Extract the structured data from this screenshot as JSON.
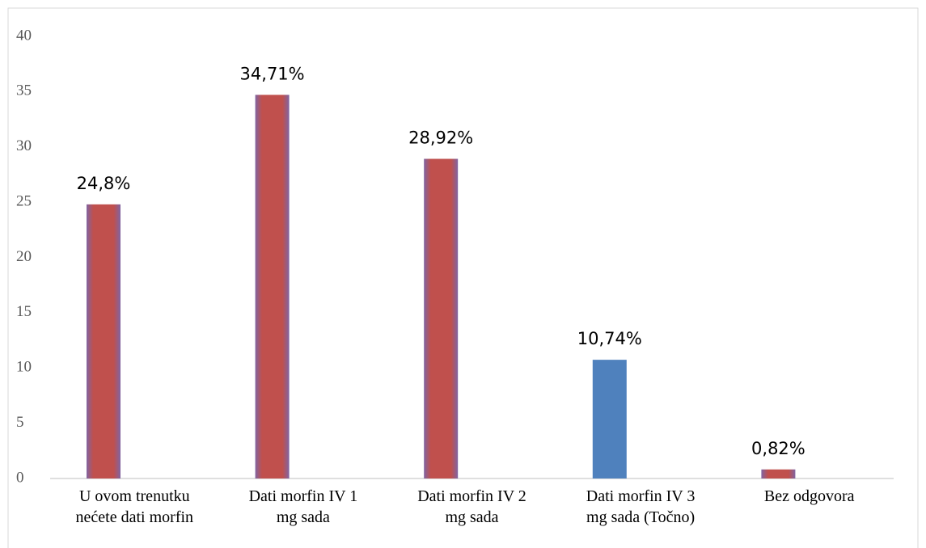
{
  "chart_data": {
    "type": "bar",
    "categories": [
      "U ovom trenutku\nnećete dati morfin",
      "Dati morfin IV 1\nmg sada",
      "Dati morfin IV 2\nmg sada",
      "Dati morfin IV 3\nmg sada (Točno)",
      "Bez odgovora"
    ],
    "values": [
      24.8,
      34.71,
      28.92,
      10.74,
      0.82
    ],
    "value_labels": [
      "24,8%",
      "34,71%",
      "28,92%",
      "10,74%",
      "0,82%"
    ],
    "colors": [
      "#c0504d",
      "#c0504d",
      "#c0504d",
      "#4f81bd",
      "#c0504d"
    ],
    "ylim": [
      0,
      40
    ],
    "yticks": [
      0,
      5,
      10,
      15,
      20,
      25,
      30,
      35,
      40
    ],
    "grid": false
  }
}
